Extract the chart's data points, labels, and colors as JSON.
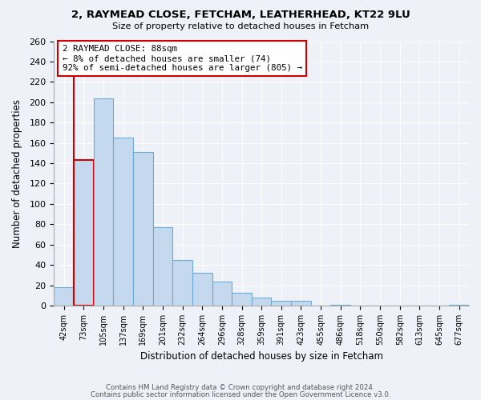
{
  "title1": "2, RAYMEAD CLOSE, FETCHAM, LEATHERHEAD, KT22 9LU",
  "title2": "Size of property relative to detached houses in Fetcham",
  "xlabel": "Distribution of detached houses by size in Fetcham",
  "ylabel": "Number of detached properties",
  "bar_labels": [
    "42sqm",
    "73sqm",
    "105sqm",
    "137sqm",
    "169sqm",
    "201sqm",
    "232sqm",
    "264sqm",
    "296sqm",
    "328sqm",
    "359sqm",
    "391sqm",
    "423sqm",
    "455sqm",
    "486sqm",
    "518sqm",
    "550sqm",
    "582sqm",
    "613sqm",
    "645sqm",
    "677sqm"
  ],
  "bar_values": [
    18,
    143,
    204,
    165,
    151,
    77,
    45,
    32,
    24,
    13,
    8,
    5,
    5,
    0,
    1,
    0,
    0,
    0,
    0,
    0,
    1
  ],
  "bar_color": "#c5d9ee",
  "bar_edge_color": "#6aaad4",
  "highlight_bar_index": 1,
  "highlight_color": "#cc0000",
  "annotation_title": "2 RAYMEAD CLOSE: 88sqm",
  "annotation_line1": "← 8% of detached houses are smaller (74)",
  "annotation_line2": "92% of semi-detached houses are larger (805) →",
  "annotation_box_color": "#ffffff",
  "annotation_box_edge": "#cc0000",
  "ylim": [
    0,
    260
  ],
  "yticks": [
    0,
    20,
    40,
    60,
    80,
    100,
    120,
    140,
    160,
    180,
    200,
    220,
    240,
    260
  ],
  "footer1": "Contains HM Land Registry data © Crown copyright and database right 2024.",
  "footer2": "Contains public sector information licensed under the Open Government Licence v3.0.",
  "background_color": "#eef2f8"
}
